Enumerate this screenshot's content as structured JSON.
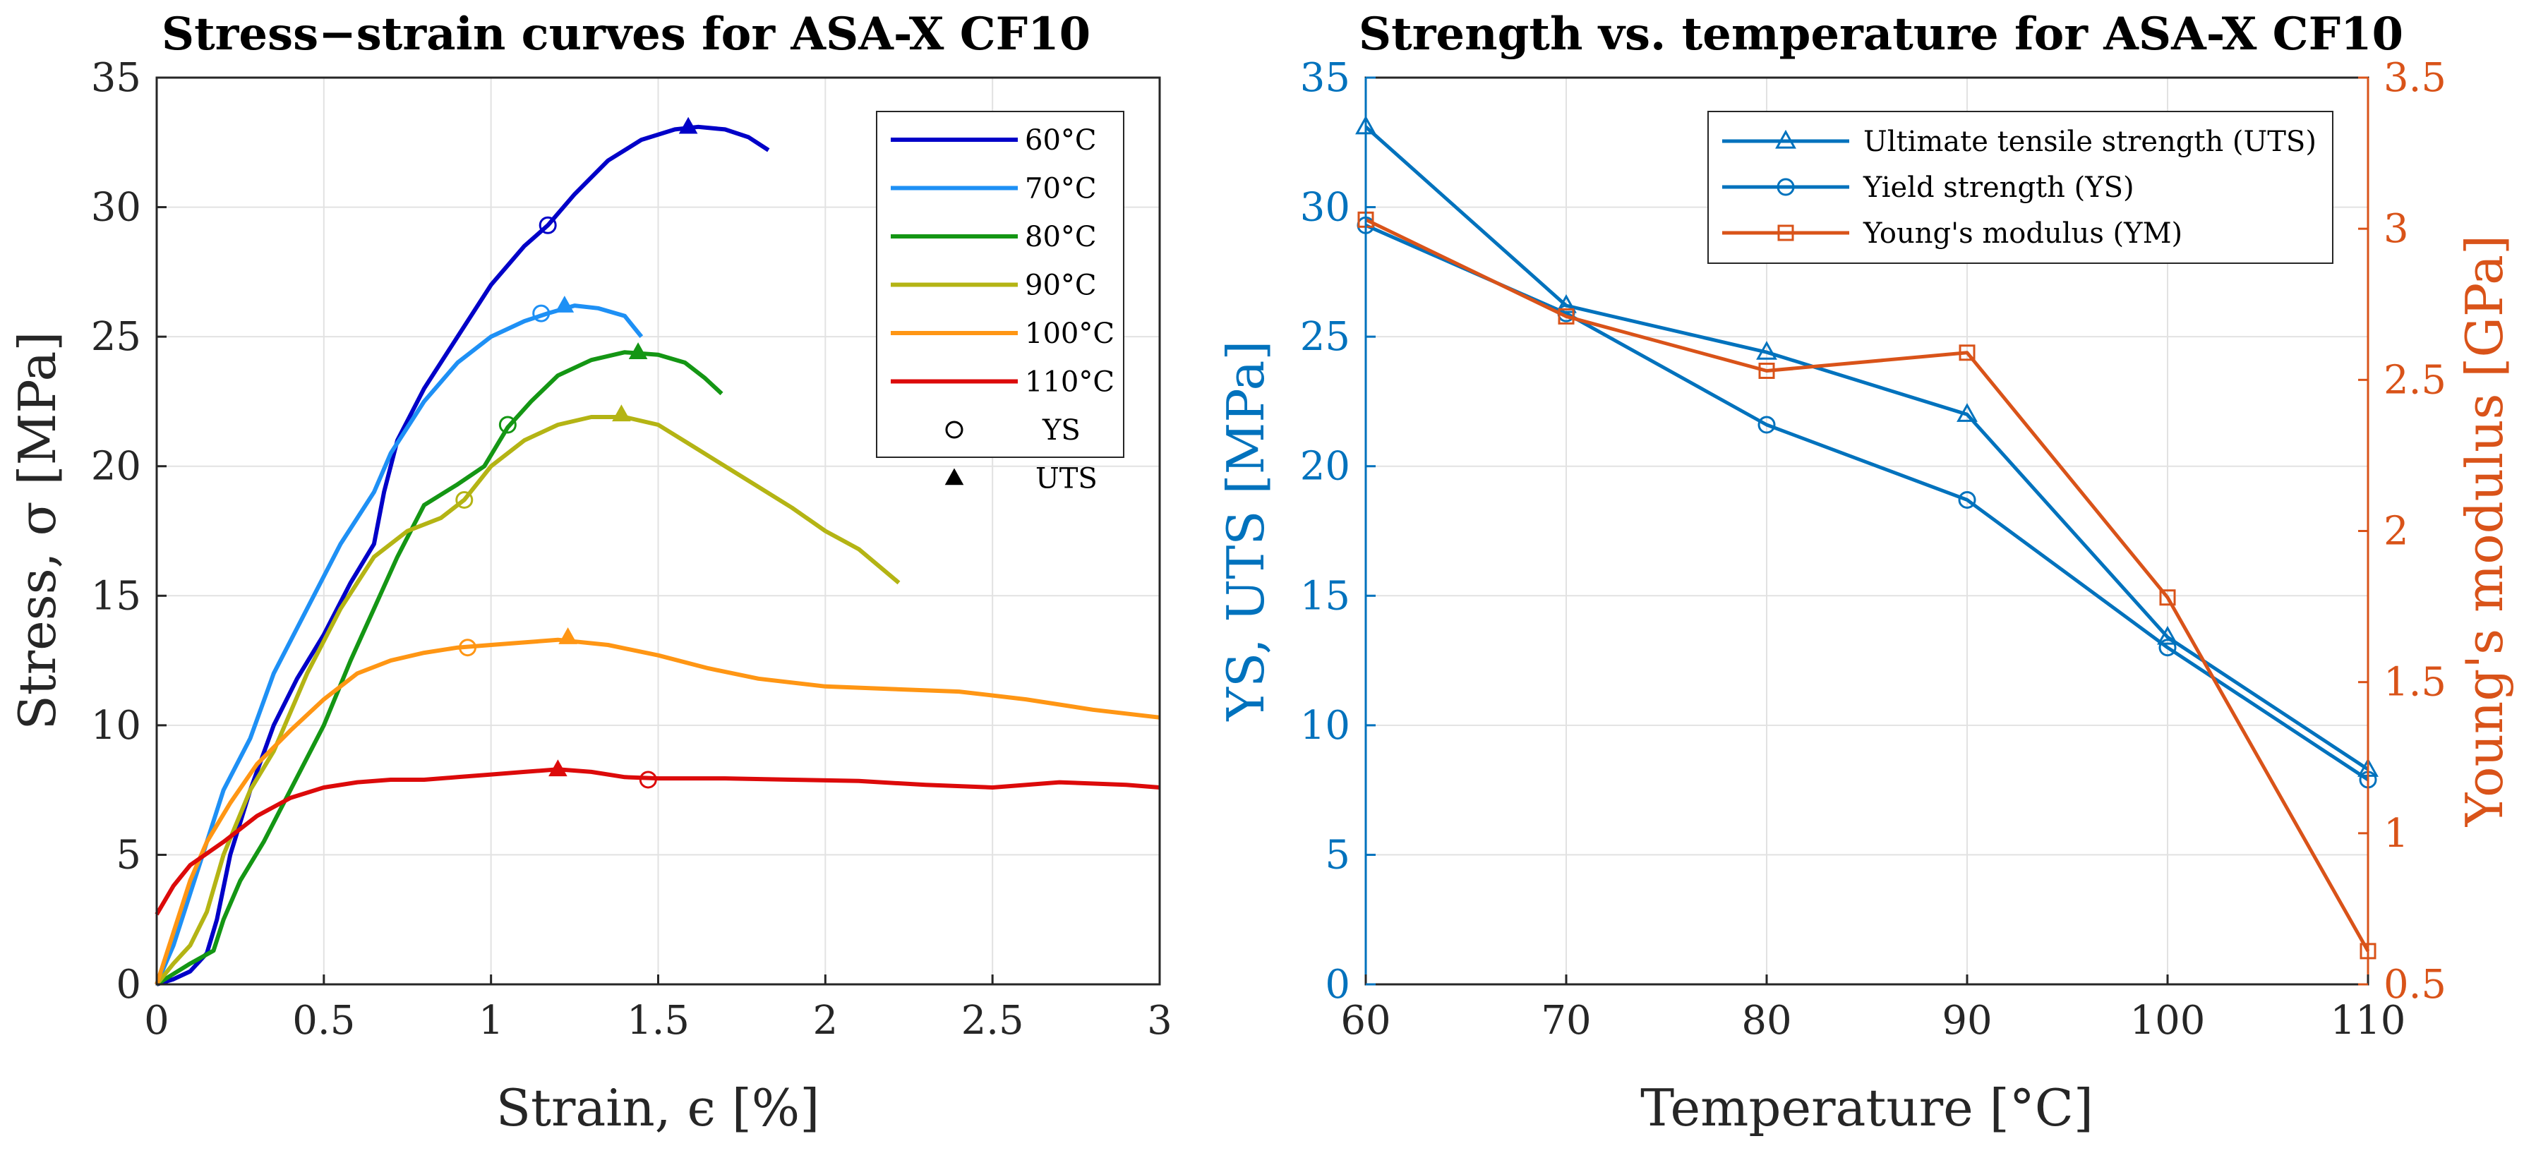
{
  "chart_data": [
    {
      "type": "line",
      "title": "Stress−strain curves for ASA-X CF10",
      "xlabel": "Strain, ϵ [%]",
      "ylabel": "Stress, σ [MPa]",
      "xlim": [
        0,
        3
      ],
      "ylim": [
        0,
        35
      ],
      "xticks": [
        "0",
        "0.5",
        "1",
        "1.5",
        "2",
        "2.5",
        "3"
      ],
      "yticks": [
        "0",
        "5",
        "10",
        "15",
        "20",
        "25",
        "30",
        "35"
      ],
      "grid": true,
      "legend_position": "top-right",
      "markers_legend": {
        "ys": "YS",
        "uts": "UTS"
      },
      "series": [
        {
          "name": "60°C",
          "color": "#0000c8",
          "points": [
            [
              0,
              0
            ],
            [
              0.05,
              0.2
            ],
            [
              0.1,
              0.5
            ],
            [
              0.15,
              1.2
            ],
            [
              0.18,
              2.5
            ],
            [
              0.22,
              5
            ],
            [
              0.28,
              7.5
            ],
            [
              0.35,
              10
            ],
            [
              0.42,
              11.8
            ],
            [
              0.5,
              13.5
            ],
            [
              0.58,
              15.5
            ],
            [
              0.65,
              17
            ],
            [
              0.68,
              19
            ],
            [
              0.72,
              21
            ],
            [
              0.8,
              23
            ],
            [
              0.9,
              25
            ],
            [
              1.0,
              27
            ],
            [
              1.1,
              28.5
            ],
            [
              1.17,
              29.3
            ],
            [
              1.25,
              30.5
            ],
            [
              1.35,
              31.8
            ],
            [
              1.45,
              32.6
            ],
            [
              1.55,
              33.0
            ],
            [
              1.62,
              33.1
            ],
            [
              1.7,
              33.0
            ],
            [
              1.77,
              32.7
            ],
            [
              1.83,
              32.2
            ]
          ],
          "ys": [
            1.17,
            29.3
          ],
          "uts": [
            1.59,
            33.1
          ]
        },
        {
          "name": "70°C",
          "color": "#1e90f5",
          "points": [
            [
              0,
              0
            ],
            [
              0.05,
              1.5
            ],
            [
              0.1,
              3.5
            ],
            [
              0.15,
              5.5
            ],
            [
              0.2,
              7.5
            ],
            [
              0.28,
              9.5
            ],
            [
              0.35,
              12
            ],
            [
              0.45,
              14.5
            ],
            [
              0.55,
              17
            ],
            [
              0.65,
              19
            ],
            [
              0.7,
              20.5
            ],
            [
              0.8,
              22.5
            ],
            [
              0.9,
              24
            ],
            [
              1.0,
              25
            ],
            [
              1.1,
              25.6
            ],
            [
              1.17,
              25.9
            ],
            [
              1.25,
              26.2
            ],
            [
              1.32,
              26.1
            ],
            [
              1.4,
              25.8
            ],
            [
              1.45,
              25.0
            ]
          ],
          "ys": [
            1.15,
            25.9
          ],
          "uts": [
            1.22,
            26.2
          ]
        },
        {
          "name": "80°C",
          "color": "#149614",
          "points": [
            [
              0,
              0
            ],
            [
              0.1,
              0.8
            ],
            [
              0.17,
              1.3
            ],
            [
              0.2,
              2.5
            ],
            [
              0.25,
              4
            ],
            [
              0.32,
              5.5
            ],
            [
              0.4,
              7.5
            ],
            [
              0.5,
              10
            ],
            [
              0.58,
              12.5
            ],
            [
              0.65,
              14.5
            ],
            [
              0.72,
              16.5
            ],
            [
              0.8,
              18.5
            ],
            [
              0.9,
              19.3
            ],
            [
              0.98,
              20
            ],
            [
              1.05,
              21.5
            ],
            [
              1.12,
              22.5
            ],
            [
              1.2,
              23.5
            ],
            [
              1.3,
              24.1
            ],
            [
              1.4,
              24.4
            ],
            [
              1.5,
              24.3
            ],
            [
              1.58,
              24
            ],
            [
              1.64,
              23.4
            ],
            [
              1.69,
              22.8
            ]
          ],
          "ys": [
            1.05,
            21.6
          ],
          "uts": [
            1.44,
            24.4
          ]
        },
        {
          "name": "90°C",
          "color": "#b4b414",
          "points": [
            [
              0,
              0
            ],
            [
              0.05,
              0.8
            ],
            [
              0.1,
              1.5
            ],
            [
              0.15,
              2.8
            ],
            [
              0.2,
              5
            ],
            [
              0.28,
              7.5
            ],
            [
              0.35,
              9
            ],
            [
              0.45,
              12
            ],
            [
              0.55,
              14.5
            ],
            [
              0.65,
              16.5
            ],
            [
              0.75,
              17.5
            ],
            [
              0.85,
              18
            ],
            [
              0.92,
              18.7
            ],
            [
              1.0,
              20
            ],
            [
              1.1,
              21
            ],
            [
              1.2,
              21.6
            ],
            [
              1.3,
              21.9
            ],
            [
              1.4,
              21.9
            ],
            [
              1.5,
              21.6
            ],
            [
              1.6,
              20.8
            ],
            [
              1.7,
              20.0
            ],
            [
              1.8,
              19.2
            ],
            [
              1.9,
              18.4
            ],
            [
              2.0,
              17.5
            ],
            [
              2.1,
              16.8
            ],
            [
              2.22,
              15.5
            ]
          ],
          "ys": [
            0.92,
            18.7
          ],
          "uts": [
            1.39,
            22.0
          ]
        },
        {
          "name": "100°C",
          "color": "#ff9614",
          "points": [
            [
              0,
              0
            ],
            [
              0.05,
              2
            ],
            [
              0.1,
              4
            ],
            [
              0.15,
              5.5
            ],
            [
              0.22,
              7
            ],
            [
              0.3,
              8.5
            ],
            [
              0.4,
              9.8
            ],
            [
              0.5,
              11
            ],
            [
              0.6,
              12
            ],
            [
              0.7,
              12.5
            ],
            [
              0.8,
              12.8
            ],
            [
              0.9,
              13
            ],
            [
              1.0,
              13.1
            ],
            [
              1.1,
              13.2
            ],
            [
              1.2,
              13.3
            ],
            [
              1.35,
              13.1
            ],
            [
              1.5,
              12.7
            ],
            [
              1.65,
              12.2
            ],
            [
              1.8,
              11.8
            ],
            [
              2.0,
              11.5
            ],
            [
              2.2,
              11.4
            ],
            [
              2.4,
              11.3
            ],
            [
              2.6,
              11.0
            ],
            [
              2.8,
              10.6
            ],
            [
              3.0,
              10.3
            ]
          ],
          "ys": [
            0.93,
            13.0
          ],
          "uts": [
            1.23,
            13.4
          ]
        },
        {
          "name": "110°C",
          "color": "#dc0a0a",
          "points": [
            [
              0,
              2.7
            ],
            [
              0.05,
              3.8
            ],
            [
              0.1,
              4.6
            ],
            [
              0.2,
              5.5
            ],
            [
              0.3,
              6.5
            ],
            [
              0.4,
              7.2
            ],
            [
              0.5,
              7.6
            ],
            [
              0.6,
              7.8
            ],
            [
              0.7,
              7.9
            ],
            [
              0.8,
              7.9
            ],
            [
              0.9,
              8.0
            ],
            [
              1.0,
              8.1
            ],
            [
              1.1,
              8.2
            ],
            [
              1.2,
              8.3
            ],
            [
              1.3,
              8.2
            ],
            [
              1.4,
              8.0
            ],
            [
              1.5,
              7.95
            ],
            [
              1.7,
              7.95
            ],
            [
              1.9,
              7.9
            ],
            [
              2.1,
              7.85
            ],
            [
              2.3,
              7.7
            ],
            [
              2.5,
              7.6
            ],
            [
              2.7,
              7.8
            ],
            [
              2.9,
              7.7
            ],
            [
              3.0,
              7.6
            ]
          ],
          "ys": [
            1.47,
            7.9
          ],
          "uts": [
            1.2,
            8.3
          ]
        }
      ]
    },
    {
      "type": "line",
      "title": "Strength vs. temperature for ASA-X CF10",
      "xlabel": "Temperature [°C]",
      "ylabel_left": "YS, UTS [MPa]",
      "ylabel_right": "Young's modulus [GPa]",
      "x": [
        60,
        70,
        80,
        90,
        100,
        110
      ],
      "xlim": [
        60,
        110
      ],
      "ylim_left": [
        0,
        35
      ],
      "ylim_right": [
        0.5,
        3.5
      ],
      "xticks": [
        "60",
        "70",
        "80",
        "90",
        "100",
        "110"
      ],
      "yticks_left": [
        "0",
        "5",
        "10",
        "15",
        "20",
        "25",
        "30",
        "35"
      ],
      "yticks_right": [
        "0.5",
        "1",
        "1.5",
        "2",
        "2.5",
        "3",
        "3.5"
      ],
      "grid": true,
      "legend_position": "top-right",
      "left_color": "#0072bd",
      "right_color": "#d95319",
      "series": [
        {
          "name": "Ultimate tensile strength (UTS)",
          "axis": "left",
          "marker": "triangle",
          "color": "#0072bd",
          "values": [
            33.1,
            26.2,
            24.4,
            22.0,
            13.4,
            8.3
          ]
        },
        {
          "name": "Yield strength (YS)",
          "axis": "left",
          "marker": "circle",
          "color": "#0072bd",
          "values": [
            29.3,
            25.9,
            21.6,
            18.7,
            13.0,
            7.9
          ]
        },
        {
          "name": "Young's modulus (YM)",
          "axis": "right",
          "marker": "square",
          "color": "#d95319",
          "values": [
            3.03,
            2.71,
            2.53,
            2.59,
            1.78,
            0.61
          ]
        }
      ]
    }
  ]
}
